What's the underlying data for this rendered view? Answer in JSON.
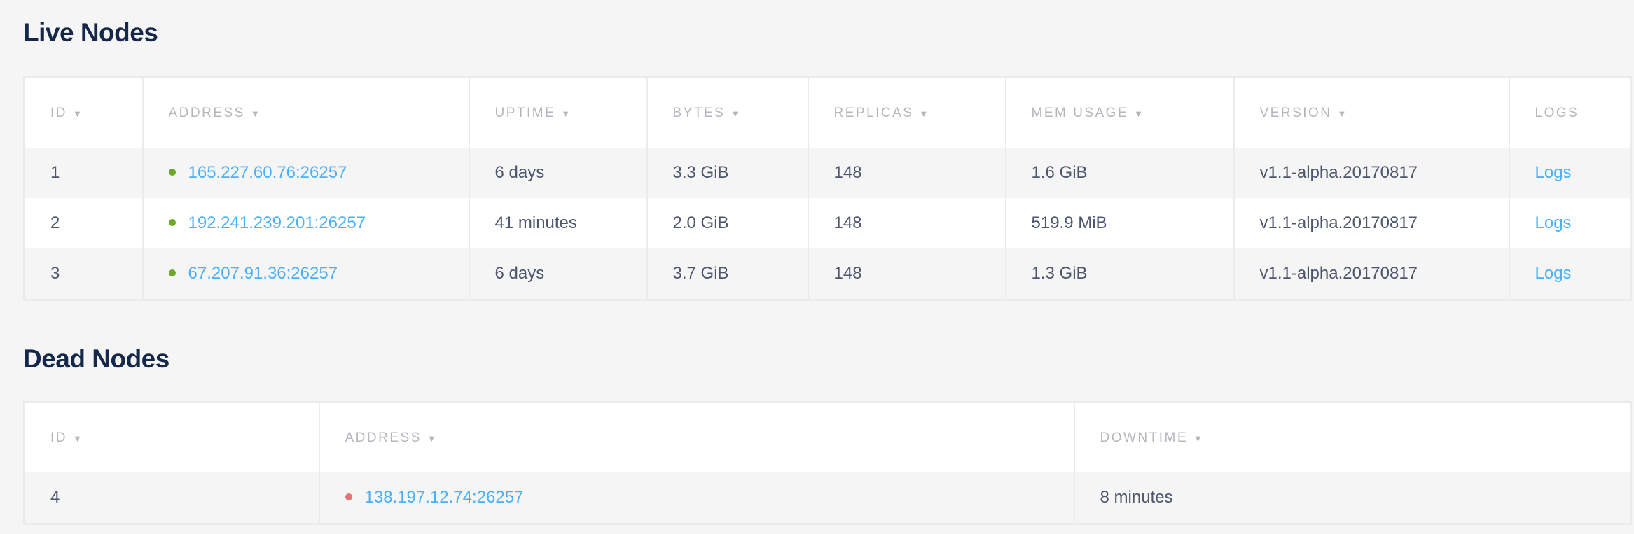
{
  "colors": {
    "live": "#6aa829",
    "dead": "#e8706f",
    "link": "#4ab0fb",
    "title": "#152849"
  },
  "live": {
    "title": "Live Nodes",
    "headers": [
      {
        "label": "ID",
        "sortable": true
      },
      {
        "label": "ADDRESS",
        "sortable": true
      },
      {
        "label": "UPTIME",
        "sortable": true
      },
      {
        "label": "BYTES",
        "sortable": true
      },
      {
        "label": "REPLICAS",
        "sortable": true
      },
      {
        "label": "MEM USAGE",
        "sortable": true
      },
      {
        "label": "VERSION",
        "sortable": true
      },
      {
        "label": "LOGS",
        "sortable": false
      }
    ],
    "sort_arrow": "▼",
    "rows": [
      {
        "id": "1",
        "address": "165.227.60.76:26257",
        "uptime": "6 days",
        "bytes": "3.3 GiB",
        "replicas": "148",
        "mem": "1.6 GiB",
        "version": "v1.1-alpha.20170817",
        "logs": "Logs"
      },
      {
        "id": "2",
        "address": "192.241.239.201:26257",
        "uptime": "41 minutes",
        "bytes": "2.0 GiB",
        "replicas": "148",
        "mem": "519.9 MiB",
        "version": "v1.1-alpha.20170817",
        "logs": "Logs"
      },
      {
        "id": "3",
        "address": "67.207.91.36:26257",
        "uptime": "6 days",
        "bytes": "3.7 GiB",
        "replicas": "148",
        "mem": "1.3 GiB",
        "version": "v1.1-alpha.20170817",
        "logs": "Logs"
      }
    ]
  },
  "dead": {
    "title": "Dead Nodes",
    "headers": [
      {
        "label": "ID",
        "sortable": true
      },
      {
        "label": "ADDRESS",
        "sortable": true
      },
      {
        "label": "DOWNTIME",
        "sortable": true
      }
    ],
    "sort_arrow": "▼",
    "rows": [
      {
        "id": "4",
        "address": "138.197.12.74:26257",
        "downtime": "8 minutes"
      }
    ]
  }
}
